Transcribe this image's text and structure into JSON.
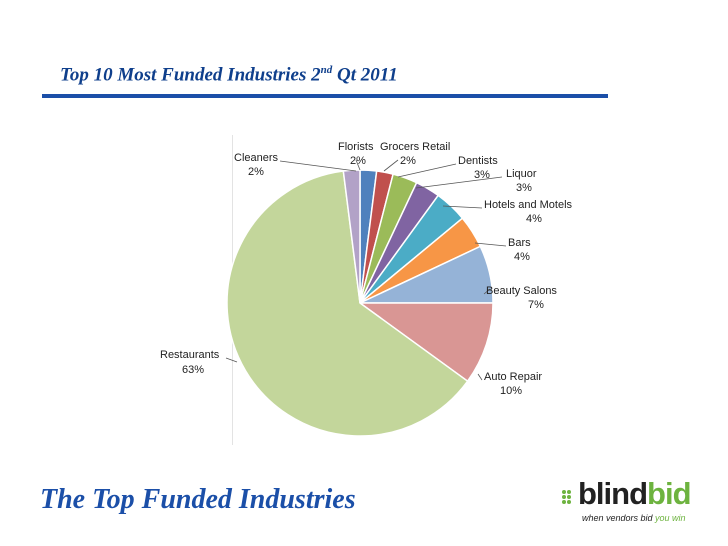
{
  "slide": {
    "title_main": "Top 10 Most Funded Industries 2",
    "title_sup": "nd",
    "title_rest": " Qt 2011",
    "footer_title": "The Top Funded Industries"
  },
  "logo": {
    "word_a": "blind",
    "word_b": "bid",
    "tagline_a": "when vendors bid ",
    "tagline_b": "you win",
    "colors": {
      "green": "#6db33f",
      "dark": "#222222"
    }
  },
  "chart_data": {
    "type": "pie",
    "title": "Top 10 Most Funded Industries 2nd Qt 2011",
    "start": "12 o'clock, clockwise",
    "slices": [
      {
        "label": "Florists",
        "pct_label": "2%",
        "value": 2,
        "color": "#4f81bd"
      },
      {
        "label": "Grocers Retail",
        "pct_label": "2%",
        "value": 2,
        "color": "#c0504d"
      },
      {
        "label": "Dentists",
        "pct_label": "3%",
        "value": 3,
        "color": "#9bbb59"
      },
      {
        "label": "Liquor",
        "pct_label": "3%",
        "value": 3,
        "color": "#8064a2"
      },
      {
        "label": "Hotels and Motels",
        "pct_label": "4%",
        "value": 4,
        "color": "#4bacc6"
      },
      {
        "label": "Bars",
        "pct_label": "4%",
        "value": 4,
        "color": "#f79646"
      },
      {
        "label": "Beauty Salons",
        "pct_label": "7%",
        "value": 7,
        "color": "#95b3d7"
      },
      {
        "label": "Auto Repair",
        "pct_label": "10%",
        "value": 10,
        "color": "#d99694"
      },
      {
        "label": "Restaurants",
        "pct_label": "63%",
        "value": 63,
        "color": "#c3d69b"
      },
      {
        "label": "Cleaners",
        "pct_label": "2%",
        "value": 2,
        "color": "#b2a2c7"
      }
    ]
  }
}
